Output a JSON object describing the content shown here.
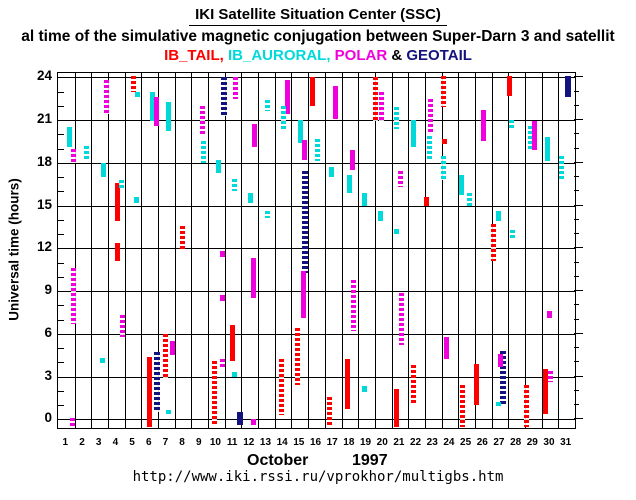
{
  "header": {
    "title": "IKI Satellite Situation Center (SSC)",
    "subtitle": "al time of the simulative magnetic conjugation between Super-Darn 3 and satellit",
    "legend": [
      {
        "label": "IB_TAIL",
        "satellite": "ib_tail"
      },
      {
        "label": "IB_AURORAL",
        "satellite": "ib_auroral"
      },
      {
        "label": "POLAR",
        "satellite": "polar"
      },
      {
        "label": "GEOTAIL",
        "satellite": "geotail"
      }
    ],
    "legend_separators": [
      ", ",
      ", ",
      " & "
    ]
  },
  "colors": {
    "ib_tail": "#ff0000",
    "ib_auroral": "#00d9d9",
    "polar": "#f000dd",
    "geotail": "#131380",
    "axis": "#000000",
    "background": "#ffffff"
  },
  "footer": {
    "url": "http://www.iki.rssi.ru/vprokhor/multigbs.htm"
  },
  "chart_data": {
    "type": "scatter",
    "description": "Universal time intervals of simulated magnetic conjugation between Super-Darn 3 and the satellites IB_TAIL, IB_AURORAL, POLAR and GEOTAIL; one column per day of October 1997; vertical colored bars mark conjugation UT intervals",
    "legend_position": "top",
    "grid": {
      "vertical": "every day boundary",
      "horizontal": "every 3 hours"
    },
    "x_axis": {
      "month": "October",
      "year": "1997",
      "days": [
        1,
        2,
        3,
        4,
        5,
        6,
        7,
        8,
        9,
        10,
        11,
        12,
        13,
        14,
        15,
        16,
        17,
        18,
        19,
        20,
        21,
        22,
        23,
        24,
        25,
        26,
        27,
        28,
        29,
        30,
        31
      ],
      "xlim": [
        0,
        31
      ]
    },
    "y_axis": {
      "label": "Universal time (hours)",
      "tick_labels": [
        0,
        3,
        6,
        9,
        12,
        15,
        18,
        21,
        24
      ],
      "minor_tick_hours": 1,
      "ylim": [
        -0.6,
        24.3
      ]
    },
    "segments": [
      {
        "d": 1,
        "sat": "ib_auroral",
        "x": 0.7,
        "h1": 19.1,
        "h2": 20.5,
        "st": "solid"
      },
      {
        "d": 1,
        "sat": "polar",
        "x": 0.95,
        "h1": 18.0,
        "h2": 19.0,
        "st": "dotted"
      },
      {
        "d": 1,
        "sat": "polar",
        "x": 0.9,
        "h1": 6.7,
        "h2": 10.6,
        "st": "dotted"
      },
      {
        "d": 1,
        "sat": "polar",
        "x": 0.88,
        "h1": -0.5,
        "h2": 0.1,
        "st": "dotted"
      },
      {
        "d": 2,
        "sat": "ib_auroral",
        "x": 1.72,
        "h1": 18.1,
        "h2": 19.2,
        "st": "dotted"
      },
      {
        "d": 3,
        "sat": "polar",
        "x": 2.88,
        "h1": 21.4,
        "h2": 23.8,
        "st": "dotted"
      },
      {
        "d": 3,
        "sat": "ib_auroral",
        "x": 2.75,
        "h1": 17.0,
        "h2": 18.0,
        "st": "solid"
      },
      {
        "d": 3,
        "sat": "ib_auroral",
        "x": 2.68,
        "h1": 3.95,
        "h2": 4.3,
        "st": "solid"
      },
      {
        "d": 4,
        "sat": "ib_tail",
        "x": 3.54,
        "h1": 13.9,
        "h2": 16.6,
        "st": "solid"
      },
      {
        "d": 4,
        "sat": "ib_tail",
        "x": 3.54,
        "h1": 11.1,
        "h2": 12.4,
        "st": "solid"
      },
      {
        "d": 4,
        "sat": "ib_auroral",
        "x": 3.82,
        "h1": 16.2,
        "h2": 16.8,
        "st": "dotted"
      },
      {
        "d": 4,
        "sat": "polar",
        "x": 3.85,
        "h1": 5.75,
        "h2": 7.3,
        "st": "dotted"
      },
      {
        "d": 5,
        "sat": "ib_tail",
        "x": 4.52,
        "h1": 22.95,
        "h2": 24.1,
        "st": "dotted"
      },
      {
        "d": 5,
        "sat": "ib_auroral",
        "x": 4.75,
        "h1": 22.65,
        "h2": 23.0,
        "st": "solid"
      },
      {
        "d": 5,
        "sat": "ib_auroral",
        "x": 4.73,
        "h1": 15.2,
        "h2": 15.6,
        "st": "solid"
      },
      {
        "d": 6,
        "sat": "ib_auroral",
        "x": 5.67,
        "h1": 20.9,
        "h2": 23.0,
        "st": "solid"
      },
      {
        "d": 6,
        "sat": "polar",
        "x": 5.88,
        "h1": 20.6,
        "h2": 22.6,
        "st": "solid"
      },
      {
        "d": 6,
        "sat": "ib_tail",
        "x": 5.5,
        "h1": -0.55,
        "h2": 4.35,
        "st": "solid"
      },
      {
        "d": 6,
        "sat": "geotail",
        "x": 5.95,
        "h1": 0.5,
        "h2": 4.7,
        "st": "dotted"
      },
      {
        "d": 7,
        "sat": "ib_auroral",
        "x": 6.6,
        "h1": 20.2,
        "h2": 22.3,
        "st": "solid"
      },
      {
        "d": 7,
        "sat": "ib_tail",
        "x": 6.42,
        "h1": 2.9,
        "h2": 6.0,
        "st": "dotted"
      },
      {
        "d": 7,
        "sat": "polar",
        "x": 6.88,
        "h1": 4.5,
        "h2": 5.5,
        "st": "solid"
      },
      {
        "d": 7,
        "sat": "ib_auroral",
        "x": 6.62,
        "h1": 0.35,
        "h2": 0.65,
        "st": "solid"
      },
      {
        "d": 8,
        "sat": "ib_tail",
        "x": 7.46,
        "h1": 11.8,
        "h2": 13.55,
        "st": "dotted"
      },
      {
        "d": 9,
        "sat": "polar",
        "x": 8.68,
        "h1": 19.9,
        "h2": 22.0,
        "st": "dotted"
      },
      {
        "d": 9,
        "sat": "ib_auroral",
        "x": 8.72,
        "h1": 18.0,
        "h2": 19.5,
        "st": "dotted"
      },
      {
        "d": 10,
        "sat": "geotail",
        "x": 9.93,
        "h1": 21.3,
        "h2": 24.0,
        "st": "dotted"
      },
      {
        "d": 10,
        "sat": "ib_auroral",
        "x": 9.6,
        "h1": 17.3,
        "h2": 18.2,
        "st": "solid"
      },
      {
        "d": 10,
        "sat": "polar",
        "x": 9.85,
        "h1": 11.4,
        "h2": 11.85,
        "st": "solid"
      },
      {
        "d": 10,
        "sat": "polar",
        "x": 9.86,
        "h1": 8.3,
        "h2": 8.7,
        "st": "solid"
      },
      {
        "d": 10,
        "sat": "polar",
        "x": 9.86,
        "h1": 3.65,
        "h2": 4.25,
        "st": "dotted"
      },
      {
        "d": 10,
        "sat": "ib_tail",
        "x": 9.37,
        "h1": -0.4,
        "h2": 4.1,
        "st": "dotted"
      },
      {
        "d": 11,
        "sat": "polar",
        "x": 10.62,
        "h1": 22.5,
        "h2": 24.0,
        "st": "dotted"
      },
      {
        "d": 11,
        "sat": "ib_auroral",
        "x": 10.56,
        "h1": 16.0,
        "h2": 16.9,
        "st": "dotted"
      },
      {
        "d": 11,
        "sat": "ib_tail",
        "x": 10.46,
        "h1": 4.1,
        "h2": 6.6,
        "st": "solid"
      },
      {
        "d": 11,
        "sat": "ib_auroral",
        "x": 10.6,
        "h1": 2.95,
        "h2": 3.3,
        "st": "solid"
      },
      {
        "d": 11,
        "sat": "geotail",
        "x": 10.9,
        "h1": -0.4,
        "h2": 0.55,
        "st": "solid"
      },
      {
        "d": 12,
        "sat": "polar",
        "x": 11.76,
        "h1": 19.1,
        "h2": 20.75,
        "st": "solid"
      },
      {
        "d": 12,
        "sat": "ib_auroral",
        "x": 11.52,
        "h1": 15.2,
        "h2": 15.9,
        "st": "solid"
      },
      {
        "d": 12,
        "sat": "polar",
        "x": 11.74,
        "h1": 8.5,
        "h2": 11.3,
        "st": "solid"
      },
      {
        "d": 12,
        "sat": "polar",
        "x": 11.74,
        "h1": -0.4,
        "h2": 0.05,
        "st": "solid"
      },
      {
        "d": 13,
        "sat": "ib_auroral",
        "x": 12.54,
        "h1": 21.6,
        "h2": 22.4,
        "st": "dotted"
      },
      {
        "d": 13,
        "sat": "ib_auroral",
        "x": 12.56,
        "h1": 14.1,
        "h2": 14.6,
        "st": "dotted"
      },
      {
        "d": 14,
        "sat": "polar",
        "x": 13.76,
        "h1": 21.4,
        "h2": 23.8,
        "st": "solid"
      },
      {
        "d": 14,
        "sat": "ib_auroral",
        "x": 13.52,
        "h1": 20.2,
        "h2": 22.0,
        "st": "dotted"
      },
      {
        "d": 14,
        "sat": "ib_tail",
        "x": 13.42,
        "h1": 0.3,
        "h2": 4.25,
        "st": "dotted"
      },
      {
        "d": 15,
        "sat": "ib_auroral",
        "x": 14.56,
        "h1": 19.4,
        "h2": 21.0,
        "st": "solid"
      },
      {
        "d": 15,
        "sat": "polar",
        "x": 14.76,
        "h1": 18.2,
        "h2": 19.6,
        "st": "solid"
      },
      {
        "d": 15,
        "sat": "geotail",
        "x": 14.82,
        "h1": 10.3,
        "h2": 17.4,
        "st": "dotted"
      },
      {
        "d": 15,
        "sat": "polar",
        "x": 14.74,
        "h1": 7.1,
        "h2": 10.4,
        "st": "solid"
      },
      {
        "d": 15,
        "sat": "ib_tail",
        "x": 14.38,
        "h1": 2.4,
        "h2": 6.4,
        "st": "dotted"
      },
      {
        "d": 16,
        "sat": "ib_tail",
        "x": 15.26,
        "h1": 22.0,
        "h2": 24.0,
        "st": "solid"
      },
      {
        "d": 16,
        "sat": "ib_auroral",
        "x": 15.56,
        "h1": 18.1,
        "h2": 19.7,
        "st": "dotted"
      },
      {
        "d": 17,
        "sat": "polar",
        "x": 16.66,
        "h1": 21.1,
        "h2": 23.4,
        "st": "solid"
      },
      {
        "d": 17,
        "sat": "ib_auroral",
        "x": 16.42,
        "h1": 17.0,
        "h2": 17.7,
        "st": "solid"
      },
      {
        "d": 17,
        "sat": "ib_tail",
        "x": 16.27,
        "h1": -0.5,
        "h2": 1.55,
        "st": "dotted"
      },
      {
        "d": 18,
        "sat": "polar",
        "x": 17.66,
        "h1": 17.5,
        "h2": 18.9,
        "st": "solid"
      },
      {
        "d": 18,
        "sat": "ib_auroral",
        "x": 17.46,
        "h1": 15.9,
        "h2": 17.15,
        "st": "solid"
      },
      {
        "d": 18,
        "sat": "polar",
        "x": 17.72,
        "h1": 6.2,
        "h2": 9.8,
        "st": "dotted"
      },
      {
        "d": 18,
        "sat": "ib_tail",
        "x": 17.36,
        "h1": 0.75,
        "h2": 4.25,
        "st": "solid"
      },
      {
        "d": 19,
        "sat": "ib_auroral",
        "x": 18.36,
        "h1": 14.95,
        "h2": 15.9,
        "st": "solid"
      },
      {
        "d": 19,
        "sat": "ib_auroral",
        "x": 18.36,
        "h1": 1.9,
        "h2": 2.35,
        "st": "solid"
      },
      {
        "d": 20,
        "sat": "ib_tail",
        "x": 19.06,
        "h1": 20.9,
        "h2": 24.0,
        "st": "dotted"
      },
      {
        "d": 20,
        "sat": "polar",
        "x": 19.42,
        "h1": 20.9,
        "h2": 23.0,
        "st": "dotted"
      },
      {
        "d": 20,
        "sat": "ib_auroral",
        "x": 19.32,
        "h1": 13.9,
        "h2": 14.6,
        "st": "solid"
      },
      {
        "d": 21,
        "sat": "ib_auroral",
        "x": 20.32,
        "h1": 20.4,
        "h2": 21.9,
        "st": "dotted"
      },
      {
        "d": 21,
        "sat": "polar",
        "x": 20.56,
        "h1": 16.3,
        "h2": 17.4,
        "st": "dotted"
      },
      {
        "d": 21,
        "sat": "ib_auroral",
        "x": 20.32,
        "h1": 13.0,
        "h2": 13.35,
        "st": "solid"
      },
      {
        "d": 21,
        "sat": "polar",
        "x": 20.62,
        "h1": 5.2,
        "h2": 8.9,
        "st": "dotted"
      },
      {
        "d": 21,
        "sat": "ib_tail",
        "x": 20.32,
        "h1": -0.5,
        "h2": 2.15,
        "st": "solid"
      },
      {
        "d": 22,
        "sat": "ib_auroral",
        "x": 21.32,
        "h1": 19.1,
        "h2": 21.0,
        "st": "solid"
      },
      {
        "d": 22,
        "sat": "ib_tail",
        "x": 21.32,
        "h1": 1.1,
        "h2": 3.8,
        "st": "dotted"
      },
      {
        "d": 23,
        "sat": "polar",
        "x": 22.36,
        "h1": 20.05,
        "h2": 22.5,
        "st": "dotted"
      },
      {
        "d": 23,
        "sat": "ib_auroral",
        "x": 22.26,
        "h1": 18.1,
        "h2": 19.9,
        "st": "dotted"
      },
      {
        "d": 23,
        "sat": "ib_tail",
        "x": 22.12,
        "h1": 14.95,
        "h2": 15.6,
        "st": "solid"
      },
      {
        "d": 24,
        "sat": "ib_tail",
        "x": 23.1,
        "h1": 21.9,
        "h2": 24.1,
        "st": "dotted"
      },
      {
        "d": 24,
        "sat": "ib_tail",
        "x": 23.17,
        "h1": 19.35,
        "h2": 19.7,
        "st": "solid"
      },
      {
        "d": 24,
        "sat": "ib_auroral",
        "x": 23.12,
        "h1": 16.8,
        "h2": 18.5,
        "st": "dotted"
      },
      {
        "d": 24,
        "sat": "polar",
        "x": 23.32,
        "h1": 4.25,
        "h2": 5.75,
        "st": "solid"
      },
      {
        "d": 25,
        "sat": "ib_auroral",
        "x": 24.17,
        "h1": 15.75,
        "h2": 17.15,
        "st": "solid"
      },
      {
        "d": 25,
        "sat": "ib_auroral",
        "x": 24.66,
        "h1": 14.95,
        "h2": 15.9,
        "st": "dotted"
      },
      {
        "d": 25,
        "sat": "ib_tail",
        "x": 24.27,
        "h1": -0.5,
        "h2": 2.4,
        "st": "dotted"
      },
      {
        "d": 26,
        "sat": "polar",
        "x": 25.52,
        "h1": 19.5,
        "h2": 21.7,
        "st": "solid"
      },
      {
        "d": 26,
        "sat": "ib_tail",
        "x": 25.12,
        "h1": 1.0,
        "h2": 3.9,
        "st": "solid"
      },
      {
        "d": 27,
        "sat": "ib_tail",
        "x": 26.12,
        "h1": 11.1,
        "h2": 13.7,
        "st": "dotted"
      },
      {
        "d": 27,
        "sat": "ib_auroral",
        "x": 26.42,
        "h1": 13.9,
        "h2": 14.6,
        "st": "solid"
      },
      {
        "d": 27,
        "sat": "geotail",
        "x": 26.67,
        "h1": 1.1,
        "h2": 4.8,
        "st": "dotted"
      },
      {
        "d": 27,
        "sat": "polar",
        "x": 26.52,
        "h1": 3.65,
        "h2": 4.6,
        "st": "solid"
      },
      {
        "d": 27,
        "sat": "ib_auroral",
        "x": 26.42,
        "h1": 0.95,
        "h2": 1.25,
        "st": "solid"
      },
      {
        "d": 28,
        "sat": "ib_tail",
        "x": 27.07,
        "h1": 22.7,
        "h2": 24.1,
        "st": "solid"
      },
      {
        "d": 28,
        "sat": "ib_auroral",
        "x": 27.22,
        "h1": 20.3,
        "h2": 21.0,
        "st": "dotted"
      },
      {
        "d": 28,
        "sat": "ib_auroral",
        "x": 27.27,
        "h1": 12.6,
        "h2": 13.3,
        "st": "dotted"
      },
      {
        "d": 29,
        "sat": "ib_auroral",
        "x": 28.32,
        "h1": 19.0,
        "h2": 20.6,
        "st": "dotted"
      },
      {
        "d": 29,
        "sat": "polar",
        "x": 28.57,
        "h1": 18.9,
        "h2": 20.9,
        "st": "solid"
      },
      {
        "d": 29,
        "sat": "ib_tail",
        "x": 28.12,
        "h1": -0.5,
        "h2": 2.4,
        "st": "dotted"
      },
      {
        "d": 30,
        "sat": "ib_auroral",
        "x": 29.37,
        "h1": 18.1,
        "h2": 19.8,
        "st": "solid"
      },
      {
        "d": 30,
        "sat": "polar",
        "x": 29.47,
        "h1": 7.1,
        "h2": 7.6,
        "st": "solid"
      },
      {
        "d": 30,
        "sat": "ib_tail",
        "x": 29.22,
        "h1": 0.4,
        "h2": 3.55,
        "st": "solid"
      },
      {
        "d": 30,
        "sat": "polar",
        "x": 29.52,
        "h1": 2.6,
        "h2": 3.4,
        "st": "dotted"
      },
      {
        "d": 31,
        "sat": "geotail",
        "x": 30.57,
        "h1": 22.6,
        "h2": 24.1,
        "st": "solid"
      },
      {
        "d": 31,
        "sat": "ib_auroral",
        "x": 30.22,
        "h1": 16.8,
        "h2": 18.5,
        "st": "dotted"
      }
    ]
  }
}
